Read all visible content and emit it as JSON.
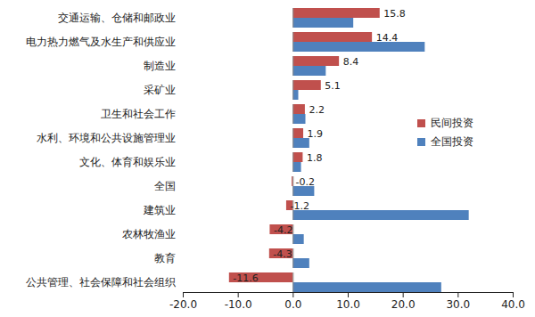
{
  "chart_data": {
    "type": "bar",
    "orientation": "horizontal",
    "categories": [
      "交通运输、仓储和邮政业",
      "电力热力燃气及水生产和供应业",
      "制造业",
      "采矿业",
      "卫生和社会工作",
      "水利、环境和公共设施管理业",
      "文化、体育和娱乐业",
      "全国",
      "建筑业",
      "农林牧渔业",
      "教育",
      "公共管理、社会保障和社会组织"
    ],
    "series": [
      {
        "name": "民间投资",
        "color": "#c0504d",
        "data_labels": true,
        "values": [
          15.8,
          14.4,
          8.4,
          5.1,
          2.2,
          1.9,
          1.8,
          -0.2,
          -1.2,
          -4.2,
          -4.3,
          -11.6
        ]
      },
      {
        "name": "全国投资",
        "color": "#4f81bd",
        "data_labels": false,
        "values": [
          11.0,
          24.0,
          6.0,
          1.0,
          2.3,
          3.0,
          1.5,
          3.9,
          32.0,
          2.0,
          3.0,
          27.0
        ]
      }
    ],
    "xlim": [
      -20,
      40
    ],
    "xticks": [
      {
        "value": -20,
        "label": "-20.0"
      },
      {
        "value": -10,
        "label": "-10.0"
      },
      {
        "value": 0,
        "label": "0.0"
      },
      {
        "value": 10,
        "label": "10.0"
      },
      {
        "value": 20,
        "label": "20.0"
      },
      {
        "value": 30,
        "label": "30.0"
      },
      {
        "value": 40,
        "label": "40.0"
      }
    ],
    "grid": false,
    "legend": "right"
  }
}
